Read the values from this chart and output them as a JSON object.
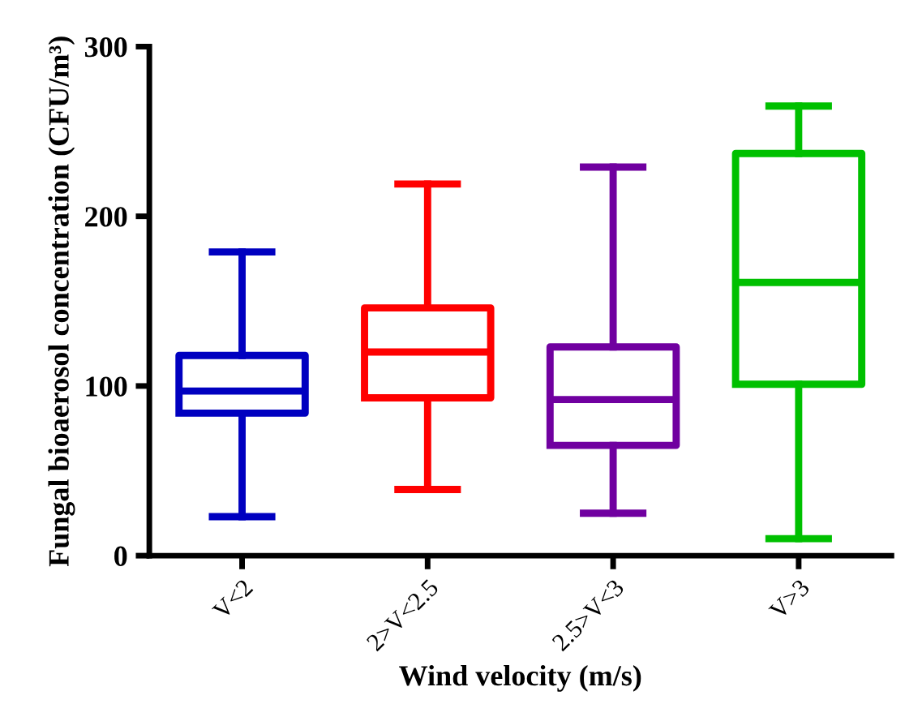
{
  "chart_data": {
    "type": "box",
    "xlabel": "Wind velocity (m/s)",
    "ylabel": "Fungal bioaerosol concentration (CFU/m³)",
    "categories": [
      "V<2",
      "2>V<2.5",
      "2.5>V<3",
      "V>3"
    ],
    "colors": [
      "#0000c0",
      "#ff0000",
      "#7000a0",
      "#00c000"
    ],
    "boxes": [
      {
        "low": 23,
        "q1": 84,
        "median": 97,
        "q3": 118,
        "high": 179
      },
      {
        "low": 39,
        "q1": 93,
        "median": 120,
        "q3": 146,
        "high": 219
      },
      {
        "low": 25,
        "q1": 65,
        "median": 92,
        "q3": 123,
        "high": 229
      },
      {
        "low": 10,
        "q1": 101,
        "median": 161,
        "q3": 237,
        "high": 265
      }
    ],
    "ylim": [
      0,
      300
    ],
    "yticks": [
      0,
      100,
      200,
      300
    ],
    "grid": false
  }
}
